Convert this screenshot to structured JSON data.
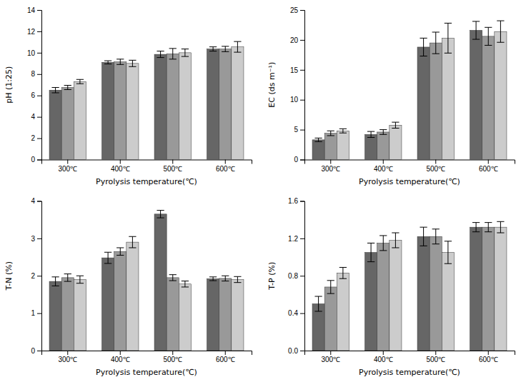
{
  "chart_data": [
    {
      "type": "bar",
      "categories": [
        "300℃",
        "400℃",
        "500℃",
        "600℃"
      ],
      "xlabel": "Pyrolysis temperature(℃)",
      "ylabel": "pH (1:25)",
      "ylim": [
        0,
        14
      ],
      "yticks": [
        0,
        2,
        4,
        6,
        8,
        10,
        12,
        14
      ],
      "grid": false,
      "series": [
        {
          "color": "#666666",
          "values": [
            6.5,
            9.1,
            9.85,
            10.35
          ],
          "errors": [
            0.25,
            0.15,
            0.3,
            0.2
          ]
        },
        {
          "color": "#999999",
          "values": [
            6.75,
            9.15,
            9.9,
            10.35
          ],
          "errors": [
            0.2,
            0.25,
            0.5,
            0.25
          ]
        },
        {
          "color": "#cccccc",
          "values": [
            7.3,
            9.0,
            10.0,
            10.55
          ],
          "errors": [
            0.2,
            0.3,
            0.35,
            0.5
          ]
        }
      ]
    },
    {
      "type": "bar",
      "categories": [
        "300℃",
        "400℃",
        "500℃",
        "600℃"
      ],
      "xlabel": "Pyrolysis temperature(℃)",
      "ylabel": "EC (ds m⁻¹)",
      "ylim": [
        0,
        25
      ],
      "yticks": [
        0,
        5,
        10,
        15,
        20,
        25
      ],
      "grid": false,
      "series": [
        {
          "color": "#666666",
          "values": [
            3.3,
            4.2,
            18.8,
            21.6
          ],
          "errors": [
            0.3,
            0.5,
            1.5,
            1.5
          ]
        },
        {
          "color": "#999999",
          "values": [
            4.4,
            4.6,
            19.5,
            20.6
          ],
          "errors": [
            0.4,
            0.4,
            1.8,
            1.5
          ]
        },
        {
          "color": "#cccccc",
          "values": [
            4.8,
            5.75,
            20.3,
            21.4
          ],
          "errors": [
            0.35,
            0.5,
            2.5,
            1.8
          ]
        }
      ]
    },
    {
      "type": "bar",
      "categories": [
        "300℃",
        "400℃",
        "500℃",
        "600℃"
      ],
      "xlabel": "Pyrolysis temperature(℃)",
      "ylabel": "T-N (%)",
      "ylim": [
        0,
        4
      ],
      "yticks": [
        0,
        1,
        2,
        3,
        4
      ],
      "grid": false,
      "series": [
        {
          "color": "#666666",
          "values": [
            1.85,
            2.48,
            3.65,
            1.92
          ],
          "errors": [
            0.12,
            0.15,
            0.1,
            0.05
          ]
        },
        {
          "color": "#999999",
          "values": [
            1.95,
            2.65,
            1.95,
            1.93
          ],
          "errors": [
            0.1,
            0.1,
            0.08,
            0.07
          ]
        },
        {
          "color": "#cccccc",
          "values": [
            1.9,
            2.9,
            1.78,
            1.9
          ],
          "errors": [
            0.1,
            0.15,
            0.08,
            0.08
          ]
        }
      ]
    },
    {
      "type": "bar",
      "categories": [
        "300℃",
        "400℃",
        "500℃",
        "600℃"
      ],
      "xlabel": "Pyrolysis temperature(℃)",
      "ylabel": "T-P (%)",
      "ylim": [
        0,
        1.6
      ],
      "yticks": [
        {
          "value": 0,
          "label": "0.0"
        },
        0.4,
        0.8,
        1.2,
        1.6
      ],
      "grid": false,
      "series": [
        {
          "color": "#666666",
          "values": [
            0.5,
            1.05,
            1.22,
            1.32
          ],
          "errors": [
            0.08,
            0.1,
            0.1,
            0.05
          ]
        },
        {
          "color": "#999999",
          "values": [
            0.68,
            1.15,
            1.22,
            1.32
          ],
          "errors": [
            0.07,
            0.08,
            0.08,
            0.05
          ]
        },
        {
          "color": "#cccccc",
          "values": [
            0.83,
            1.18,
            1.05,
            1.32
          ],
          "errors": [
            0.06,
            0.08,
            0.12,
            0.06
          ]
        }
      ]
    }
  ]
}
